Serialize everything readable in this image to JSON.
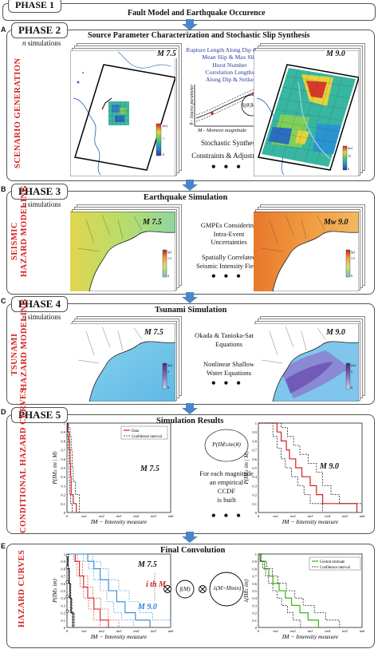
{
  "phase1": {
    "tab": "PHASE 1",
    "title": "Fault Model and Earthquake Occurence"
  },
  "phase2": {
    "letter": "A",
    "tab": "PHASE 2",
    "title": "Source Parameter Characterization and Stochastic Slip Synthesis",
    "n_sim": "n",
    "n_sim_suffix": " simulations",
    "side_label": "SCENARIO GENERATION",
    "mag_left": "M 7.5",
    "mag_right": "M 9.0",
    "params": [
      "Rupture Length Along Dip & Strike",
      "Mean Slip & Max Slip",
      "Hurst Number",
      "Correlation Lengths",
      "Along Dip & Strike"
    ],
    "axis_y": "θ - Source parameter",
    "axis_x": "M - Moment magnitude",
    "circle": "S(θ|M)",
    "step1": "Stochastic Synthesis",
    "step2": "Constraints & Adjustments",
    "dots": "• • •",
    "colorbar_left": [
      "0.5",
      "1",
      "0"
    ],
    "colorbar_right": [
      "[m]",
      "15",
      "5",
      "0"
    ]
  },
  "phase3": {
    "letter": "B",
    "tab": "PHASE 3",
    "title": "Earthquake Simulation",
    "n_sim": "n",
    "n_sim_suffix": " simulations",
    "side_label": "SEISMIC HAZARD MODELING",
    "mag_left": "M 7.5",
    "mag_right": "Mw 9.0",
    "text1": [
      "GMPEs Considering",
      "Intra-Event",
      "Uncertainties"
    ],
    "text2": [
      "Spatially Correlated",
      "Seismic Intensity Fields"
    ],
    "dots": "• • •",
    "colorbar": [
      "[g]",
      "1.5",
      "0.75",
      "0.25",
      "0"
    ]
  },
  "phase4": {
    "letter": "C",
    "tab": "PHASE 4",
    "title": "Tsunami Simulation",
    "n_sim": "n",
    "n_sim_suffix": " simulations",
    "side_label": "TSUNAMI HAZARD MODELING",
    "mag_left": "M 7.5",
    "mag_right": "M 9.0",
    "text1": [
      "Okada & Tanioka-Satake",
      "Equations"
    ],
    "text2": [
      "Nonlinear Shallow",
      "Water Equations"
    ],
    "dots": "• • •",
    "colorbar": [
      "[m]",
      "5",
      "3",
      "1",
      "0"
    ]
  },
  "phase5": {
    "letter": "D",
    "tab": "PHASE 5",
    "title": "Simulation Results",
    "side_label": "CONDITIONAL HAZARD CURVES",
    "mag_left": "M 7.5",
    "mag_right": "M 9.0",
    "circle": "P(IM≥im|θ)",
    "text": [
      "For each magnitude",
      "an empirical",
      "CCDF",
      "is built"
    ],
    "dots": "• • •",
    "legend": [
      "Data",
      "Confidence interval"
    ],
    "ylabel": "P(IM≥ im | M)",
    "xlabel": "IM − Intensity measure",
    "xticks": [
      "0",
      "im1",
      "im2",
      "im3",
      "im4",
      "im5",
      "im6"
    ],
    "yticks": [
      "1",
      "0.9",
      "0.8",
      "0.7",
      "0.6",
      "0.5",
      "0.4",
      "0.3",
      "0.2",
      "0.1",
      "0"
    ]
  },
  "phaseE": {
    "letter": "E",
    "title": "Final Convolution",
    "side_label": "HAZARD CURVES",
    "mag_top": "M 7.5",
    "mag_mid": "i th M",
    "mag_bot": "M 9.0",
    "f_m": "f(M)",
    "lambda": "λ(M>Mmin)",
    "legend": [
      "Central estimate",
      "Confidence interval"
    ],
    "ylabel_left": "P(IM≥ im)",
    "ylabel_right": "λ(IM≥ im)",
    "xlabel": "IM − Intensity measure",
    "xticks": [
      "0",
      "im1",
      "im2",
      "im3",
      "im4",
      "im5",
      "im6"
    ],
    "yticks": [
      "1",
      "0.9",
      "0.8",
      "0.7",
      "0.6",
      "0.5",
      "0.4",
      "0.3",
      "0.2",
      "0.1",
      "0"
    ],
    "multiply": "⊗"
  },
  "colors": {
    "phase_red": "#d42020",
    "arrow_blue": "#4a86c8",
    "curve_red": "#d42020",
    "curve_blue": "#2a86d6",
    "curve_green": "#44bb22"
  }
}
